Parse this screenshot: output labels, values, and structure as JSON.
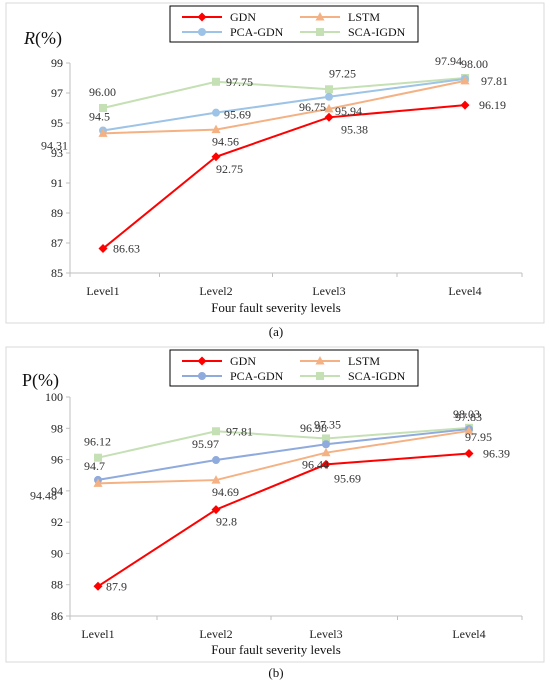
{
  "chart_data": [
    {
      "type": "line",
      "title": "",
      "ylabel": "R(%)",
      "ylabel_italic_letter": "R",
      "ylabel_suffix": "(%)",
      "xlabel": "Four fault severity levels",
      "caption": "(a)",
      "categories": [
        "Level1",
        "Level2",
        "Level3",
        "Level4"
      ],
      "ylim": [
        85,
        99
      ],
      "yticks": [
        85,
        87,
        89,
        91,
        93,
        95,
        97,
        99
      ],
      "ytick_labels": [
        "85",
        "87",
        "89",
        "91",
        "93",
        "95",
        "97",
        "99"
      ],
      "legend_position": "top-center",
      "series": [
        {
          "name": "GDN",
          "color": "#ff0000",
          "marker": "diamond",
          "values": [
            86.63,
            92.75,
            95.38,
            96.19
          ],
          "labels": [
            "86.63",
            "92.75",
            "95.38",
            "96.19"
          ]
        },
        {
          "name": "LSTM",
          "color": "#f4b183",
          "marker": "triangle",
          "values": [
            94.31,
            94.56,
            95.94,
            97.81
          ],
          "labels": [
            "94.31",
            "94.56",
            "95.94",
            "97.81"
          ]
        },
        {
          "name": "PCA-GDN",
          "color": "#9dc3e6",
          "marker": "circle",
          "values": [
            94.5,
            95.69,
            96.75,
            97.94
          ],
          "labels": [
            "94.5",
            "95.69",
            "96.75",
            "97.94"
          ]
        },
        {
          "name": "SCA-IGDN",
          "color": "#c5e0b4",
          "marker": "square",
          "values": [
            96.0,
            97.75,
            97.25,
            98.0
          ],
          "labels": [
            "96.00",
            "97.75",
            "97.25",
            "98.00"
          ]
        }
      ]
    },
    {
      "type": "line",
      "title": "",
      "ylabel": "P(%)",
      "ylabel_italic_letter": "",
      "ylabel_suffix": "P(%)",
      "xlabel": "Four fault severity levels",
      "caption": "(b)",
      "categories": [
        "Level1",
        "Level2",
        "Level3",
        "Level4"
      ],
      "ylim": [
        86,
        100
      ],
      "yticks": [
        86,
        88,
        90,
        92,
        94,
        96,
        98,
        100
      ],
      "ytick_labels": [
        "86",
        "88",
        "90",
        "92",
        "94",
        "96",
        "98",
        "100"
      ],
      "legend_position": "top-center",
      "series": [
        {
          "name": "GDN",
          "color": "#ff0000",
          "marker": "diamond",
          "values": [
            87.9,
            92.8,
            95.69,
            96.39
          ],
          "labels": [
            "87.9",
            "92.8",
            "95.69",
            "96.39"
          ]
        },
        {
          "name": "LSTM",
          "color": "#f4b183",
          "marker": "triangle",
          "values": [
            94.48,
            94.69,
            96.44,
            97.83
          ],
          "labels": [
            "94.48",
            "94.69",
            "96.44",
            "97.83"
          ]
        },
        {
          "name": "PCA-GDN",
          "color": "#8faadc",
          "marker": "circle",
          "values": [
            94.7,
            95.97,
            96.98,
            97.95
          ],
          "labels": [
            "94.7",
            "95.97",
            "96.98",
            "97.95"
          ]
        },
        {
          "name": "SCA-IGDN",
          "color": "#c5e0b4",
          "marker": "square",
          "values": [
            96.12,
            97.81,
            97.35,
            98.03
          ],
          "labels": [
            "96.12",
            "97.81",
            "97.35",
            "98.03"
          ]
        }
      ]
    }
  ]
}
